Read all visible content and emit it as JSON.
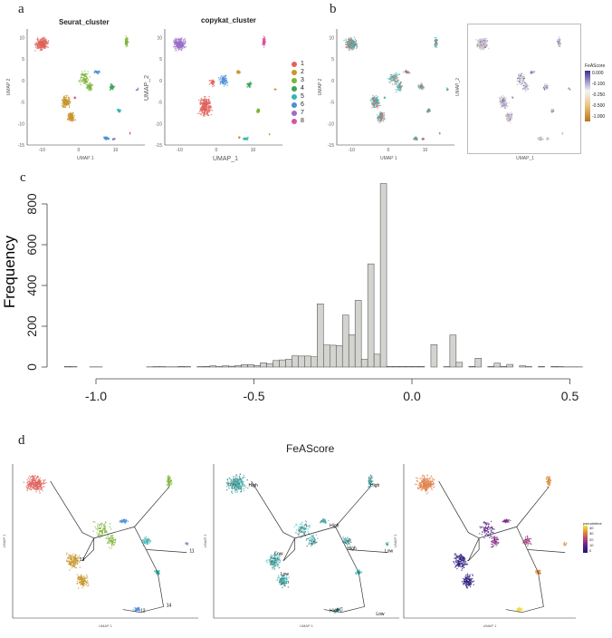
{
  "panel_a": {
    "label": "a",
    "plots": [
      {
        "title": "Seurat_cluster",
        "xlabel": "UMAP 1",
        "ylabel": "UMAP 2"
      },
      {
        "title": "copykat_cluster",
        "xlabel": "UMAP_1",
        "ylabel": "UMAP_2"
      }
    ],
    "xticks": [
      "-10",
      "0",
      "10"
    ],
    "yticks": [
      "10",
      "5",
      "0",
      "-5",
      "-10",
      "-15"
    ],
    "legend": [
      "1",
      "2",
      "3",
      "4",
      "5",
      "6",
      "7",
      "8"
    ],
    "colors": [
      "#e0635b",
      "#c8962e",
      "#7db53a",
      "#3aa653",
      "#38b3b3",
      "#4a8fd6",
      "#9b6dc9",
      "#d6559e"
    ]
  },
  "panel_b": {
    "label": "b",
    "plots": [
      {
        "xlabel": "UMAP 1",
        "ylabel": "UMAP 2"
      },
      {
        "xlabel": "UMAP_1",
        "ylabel": "UMAP_2"
      }
    ],
    "legend_title": "FeAScore",
    "legend_ticks": [
      "0.000",
      "-0.100",
      "-0.250",
      "-0.500",
      "-1.000"
    ],
    "colors": {
      "high": "#3b2f8f",
      "mid": "#f4f4f8",
      "low": "#b8731a",
      "red": "#e0635b",
      "teal": "#3cbcbc"
    }
  },
  "chart_data": {
    "type": "bar",
    "panel_label": "c",
    "title": "",
    "xlabel": "",
    "ylabel": "Frequency",
    "bin_start": -1.1,
    "bin_width": 0.02,
    "values": [
      3,
      2,
      0,
      0,
      1,
      1,
      0,
      0,
      0,
      0,
      0,
      0,
      0,
      1,
      2,
      2,
      1,
      1,
      3,
      2,
      0,
      2,
      3,
      6,
      2,
      6,
      4,
      8,
      12,
      12,
      8,
      21,
      17,
      32,
      35,
      38,
      55,
      54,
      54,
      50,
      310,
      108,
      107,
      105,
      255,
      158,
      327,
      38,
      506,
      63,
      900,
      3,
      3,
      3,
      3,
      3,
      3,
      0,
      110,
      0,
      2,
      157,
      23,
      0,
      3,
      43,
      0,
      3,
      19,
      3,
      13,
      0,
      6,
      2,
      0,
      3,
      0,
      3,
      2,
      1,
      1,
      1
    ],
    "xlim": [
      -1.1,
      0.54
    ],
    "ylim": [
      0,
      900
    ],
    "xticks": [
      "-1.0",
      "-0.5",
      "0.0",
      "0.5"
    ],
    "xtick_values": [
      -1.0,
      -0.5,
      0.0,
      0.5
    ],
    "yticks": [
      "0",
      "200",
      "400",
      "600",
      "800"
    ],
    "ytick_values": [
      0,
      200,
      400,
      600,
      800
    ],
    "bar_color": "#d3d3d0"
  },
  "panel_d": {
    "label": "d",
    "title": "FeAScore",
    "xlabel": "UMAP 1",
    "ylabel": "UMAP 2",
    "cluster_numbers": [
      "11",
      "13",
      "14",
      "12"
    ],
    "state_labels": [
      "High",
      "High",
      "High",
      "High",
      "Low",
      "Low",
      "Low",
      "High",
      "Low"
    ],
    "legend_title": "pseudotime",
    "legend_ticks": [
      "40",
      "30",
      "20",
      "10",
      "0"
    ]
  }
}
